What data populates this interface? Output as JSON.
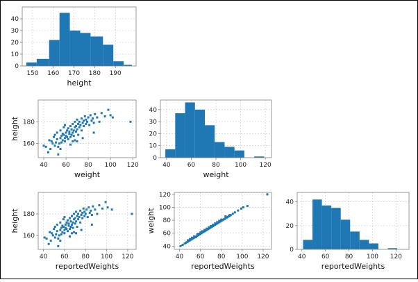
{
  "colors": {
    "marker": "#1f77b4",
    "grid": "#c8c8c8",
    "axes": "#808080",
    "frame": "#000000"
  },
  "chart_data": [
    {
      "type": "bar",
      "subtype": "histogram",
      "xlabel": "height",
      "ylabel": "",
      "xlim": [
        145,
        200
      ],
      "ylim": [
        0,
        50
      ],
      "xticks": [
        150,
        160,
        170,
        180,
        190
      ],
      "yticks": [
        0,
        10,
        20,
        30,
        40
      ],
      "grid": true,
      "bins": [
        {
          "start": 147,
          "end": 152,
          "count": 3
        },
        {
          "start": 152,
          "end": 158,
          "count": 6
        },
        {
          "start": 158,
          "end": 163,
          "count": 22
        },
        {
          "start": 163,
          "end": 168,
          "count": 45
        },
        {
          "start": 168,
          "end": 173,
          "count": 30
        },
        {
          "start": 173,
          "end": 178,
          "count": 28
        },
        {
          "start": 178,
          "end": 184,
          "count": 25
        },
        {
          "start": 184,
          "end": 189,
          "count": 18
        },
        {
          "start": 189,
          "end": 194,
          "count": 4
        },
        {
          "start": 194,
          "end": 198,
          "count": 1
        }
      ]
    },
    {
      "type": "scatter",
      "xlabel": "weight",
      "ylabel": "height",
      "xlim": [
        35,
        123
      ],
      "ylim": [
        147,
        200
      ],
      "xticks": [
        40,
        60,
        80,
        100,
        120
      ],
      "yticks": [
        160,
        180
      ],
      "grid": true,
      "points": [
        [
          40,
          158
        ],
        [
          42,
          157
        ],
        [
          44,
          152
        ],
        [
          45,
          163
        ],
        [
          46,
          155
        ],
        [
          47,
          162
        ],
        [
          48,
          160
        ],
        [
          49,
          166
        ],
        [
          50,
          158
        ],
        [
          50,
          168
        ],
        [
          51,
          161
        ],
        [
          52,
          164
        ],
        [
          52,
          170
        ],
        [
          53,
          157
        ],
        [
          54,
          160
        ],
        [
          55,
          172
        ],
        [
          55,
          165
        ],
        [
          56,
          167
        ],
        [
          56,
          161
        ],
        [
          57,
          163
        ],
        [
          57,
          169
        ],
        [
          58,
          168
        ],
        [
          58,
          175
        ],
        [
          59,
          165
        ],
        [
          59,
          162
        ],
        [
          60,
          170
        ],
        [
          60,
          167
        ],
        [
          61,
          166
        ],
        [
          61,
          172
        ],
        [
          62,
          174
        ],
        [
          62,
          164
        ],
        [
          63,
          169
        ],
        [
          63,
          171
        ],
        [
          64,
          176
        ],
        [
          64,
          166
        ],
        [
          65,
          173
        ],
        [
          65,
          168
        ],
        [
          66,
          170
        ],
        [
          66,
          178
        ],
        [
          67,
          172
        ],
        [
          67,
          167
        ],
        [
          68,
          175
        ],
        [
          68,
          180
        ],
        [
          69,
          171
        ],
        [
          69,
          176
        ],
        [
          70,
          173
        ],
        [
          70,
          182
        ],
        [
          71,
          178
        ],
        [
          72,
          175
        ],
        [
          72,
          180
        ],
        [
          73,
          177
        ],
        [
          74,
          172
        ],
        [
          74,
          183
        ],
        [
          75,
          179
        ],
        [
          76,
          181
        ],
        [
          76,
          176
        ],
        [
          77,
          185
        ],
        [
          78,
          178
        ],
        [
          78,
          182
        ],
        [
          79,
          180
        ],
        [
          80,
          184
        ],
        [
          81,
          177
        ],
        [
          82,
          186
        ],
        [
          83,
          181
        ],
        [
          84,
          183
        ],
        [
          85,
          179
        ],
        [
          86,
          187
        ],
        [
          88,
          184
        ],
        [
          90,
          180
        ],
        [
          92,
          188
        ],
        [
          95,
          185
        ],
        [
          98,
          191
        ],
        [
          100,
          186
        ],
        [
          102,
          184
        ],
        [
          118,
          180
        ],
        [
          64,
          159
        ],
        [
          66,
          162
        ],
        [
          68,
          163
        ],
        [
          71,
          168
        ],
        [
          59,
          177
        ],
        [
          85,
          170
        ],
        [
          75,
          165
        ],
        [
          70,
          162
        ],
        [
          55,
          155
        ],
        [
          53,
          150
        ]
      ]
    },
    {
      "type": "bar",
      "subtype": "histogram",
      "xlabel": "weight",
      "ylabel": "",
      "xlim": [
        35,
        125
      ],
      "ylim": [
        0,
        48
      ],
      "xticks": [
        40,
        60,
        80,
        100,
        120
      ],
      "yticks": [
        0,
        10,
        20,
        30,
        40
      ],
      "grid": true,
      "bins": [
        {
          "start": 39,
          "end": 47,
          "count": 7
        },
        {
          "start": 47,
          "end": 55,
          "count": 37
        },
        {
          "start": 55,
          "end": 63,
          "count": 46
        },
        {
          "start": 63,
          "end": 71,
          "count": 40
        },
        {
          "start": 71,
          "end": 79,
          "count": 27
        },
        {
          "start": 79,
          "end": 87,
          "count": 13
        },
        {
          "start": 87,
          "end": 95,
          "count": 9
        },
        {
          "start": 95,
          "end": 103,
          "count": 6
        },
        {
          "start": 103,
          "end": 111,
          "count": 0
        },
        {
          "start": 111,
          "end": 119,
          "count": 1
        }
      ]
    },
    {
      "type": "scatter",
      "xlabel": "reportedWeights",
      "ylabel": "height",
      "xlim": [
        35,
        128
      ],
      "ylim": [
        147,
        200
      ],
      "xticks": [
        40,
        60,
        80,
        100,
        120
      ],
      "yticks": [
        160,
        180
      ],
      "grid": true,
      "points": [
        [
          41,
          158
        ],
        [
          43,
          157
        ],
        [
          45,
          152
        ],
        [
          46,
          163
        ],
        [
          47,
          155
        ],
        [
          48,
          162
        ],
        [
          49,
          160
        ],
        [
          50,
          166
        ],
        [
          51,
          158
        ],
        [
          51,
          168
        ],
        [
          52,
          161
        ],
        [
          53,
          164
        ],
        [
          53,
          170
        ],
        [
          54,
          157
        ],
        [
          55,
          160
        ],
        [
          56,
          172
        ],
        [
          56,
          165
        ],
        [
          57,
          167
        ],
        [
          57,
          161
        ],
        [
          58,
          163
        ],
        [
          58,
          169
        ],
        [
          59,
          168
        ],
        [
          59,
          175
        ],
        [
          60,
          165
        ],
        [
          60,
          162
        ],
        [
          61,
          170
        ],
        [
          61,
          167
        ],
        [
          62,
          166
        ],
        [
          62,
          172
        ],
        [
          63,
          174
        ],
        [
          63,
          164
        ],
        [
          64,
          169
        ],
        [
          64,
          171
        ],
        [
          65,
          176
        ],
        [
          65,
          166
        ],
        [
          66,
          173
        ],
        [
          66,
          168
        ],
        [
          67,
          170
        ],
        [
          67,
          178
        ],
        [
          68,
          172
        ],
        [
          68,
          167
        ],
        [
          69,
          175
        ],
        [
          69,
          180
        ],
        [
          70,
          171
        ],
        [
          70,
          176
        ],
        [
          71,
          173
        ],
        [
          71,
          182
        ],
        [
          72,
          178
        ],
        [
          73,
          175
        ],
        [
          73,
          180
        ],
        [
          74,
          177
        ],
        [
          75,
          172
        ],
        [
          75,
          183
        ],
        [
          76,
          179
        ],
        [
          77,
          181
        ],
        [
          77,
          176
        ],
        [
          78,
          185
        ],
        [
          79,
          178
        ],
        [
          79,
          182
        ],
        [
          80,
          180
        ],
        [
          81,
          184
        ],
        [
          82,
          177
        ],
        [
          83,
          186
        ],
        [
          84,
          181
        ],
        [
          85,
          183
        ],
        [
          86,
          179
        ],
        [
          87,
          187
        ],
        [
          89,
          184
        ],
        [
          91,
          180
        ],
        [
          93,
          188
        ],
        [
          96,
          185
        ],
        [
          99,
          191
        ],
        [
          101,
          186
        ],
        [
          105,
          184
        ],
        [
          124,
          180
        ],
        [
          65,
          159
        ],
        [
          67,
          162
        ],
        [
          69,
          163
        ],
        [
          72,
          168
        ],
        [
          60,
          177
        ],
        [
          86,
          170
        ],
        [
          76,
          165
        ],
        [
          71,
          162
        ],
        [
          56,
          155
        ],
        [
          54,
          150
        ]
      ]
    },
    {
      "type": "scatter",
      "xlabel": "reportedWeights",
      "ylabel": "weight",
      "xlim": [
        35,
        128
      ],
      "ylim": [
        35,
        123
      ],
      "xticks": [
        40,
        60,
        80,
        100,
        120
      ],
      "yticks": [
        40,
        60,
        80,
        100,
        120
      ],
      "grid": true,
      "points": [
        [
          41,
          40
        ],
        [
          43,
          42
        ],
        [
          45,
          44
        ],
        [
          46,
          45
        ],
        [
          47,
          46
        ],
        [
          48,
          47
        ],
        [
          49,
          48
        ],
        [
          50,
          49
        ],
        [
          51,
          50
        ],
        [
          52,
          51
        ],
        [
          53,
          52
        ],
        [
          54,
          53
        ],
        [
          55,
          54
        ],
        [
          56,
          55
        ],
        [
          57,
          56
        ],
        [
          58,
          57
        ],
        [
          59,
          58
        ],
        [
          60,
          59
        ],
        [
          61,
          60
        ],
        [
          62,
          61
        ],
        [
          63,
          62
        ],
        [
          64,
          63
        ],
        [
          65,
          64
        ],
        [
          66,
          65
        ],
        [
          67,
          66
        ],
        [
          68,
          67
        ],
        [
          69,
          68
        ],
        [
          70,
          69
        ],
        [
          71,
          70
        ],
        [
          72,
          71
        ],
        [
          73,
          72
        ],
        [
          74,
          73
        ],
        [
          75,
          74
        ],
        [
          76,
          75
        ],
        [
          77,
          76
        ],
        [
          78,
          77
        ],
        [
          79,
          78
        ],
        [
          80,
          79
        ],
        [
          81,
          80
        ],
        [
          82,
          81
        ],
        [
          83,
          82
        ],
        [
          84,
          83
        ],
        [
          85,
          84
        ],
        [
          86,
          85
        ],
        [
          87,
          86
        ],
        [
          88,
          87
        ],
        [
          89,
          88
        ],
        [
          91,
          90
        ],
        [
          93,
          92
        ],
        [
          96,
          95
        ],
        [
          99,
          98
        ],
        [
          101,
          100
        ],
        [
          105,
          102
        ],
        [
          124,
          120
        ],
        [
          52,
          53
        ],
        [
          56,
          54
        ],
        [
          60,
          61
        ],
        [
          64,
          65
        ],
        [
          68,
          69
        ],
        [
          72,
          73
        ],
        [
          76,
          77
        ],
        [
          80,
          81
        ],
        [
          84,
          86
        ],
        [
          88,
          88
        ],
        [
          58,
          59
        ],
        [
          62,
          63
        ],
        [
          66,
          67
        ],
        [
          70,
          71
        ],
        [
          74,
          75
        ],
        [
          78,
          79
        ],
        [
          54,
          55
        ],
        [
          50,
          51
        ],
        [
          48,
          49
        ],
        [
          57,
          58
        ],
        [
          61,
          62
        ]
      ]
    },
    {
      "type": "bar",
      "subtype": "histogram",
      "xlabel": "reportedWeights",
      "ylabel": "",
      "xlim": [
        36,
        131
      ],
      "ylim": [
        0,
        48
      ],
      "xticks": [
        40,
        60,
        80,
        100,
        120
      ],
      "yticks": [
        0,
        20,
        40
      ],
      "grid": true,
      "bins": [
        {
          "start": 41,
          "end": 49,
          "count": 8
        },
        {
          "start": 49,
          "end": 57,
          "count": 42
        },
        {
          "start": 57,
          "end": 65,
          "count": 37
        },
        {
          "start": 65,
          "end": 73,
          "count": 35
        },
        {
          "start": 73,
          "end": 81,
          "count": 25
        },
        {
          "start": 81,
          "end": 89,
          "count": 15
        },
        {
          "start": 89,
          "end": 97,
          "count": 8
        },
        {
          "start": 97,
          "end": 105,
          "count": 5
        },
        {
          "start": 105,
          "end": 113,
          "count": 0
        },
        {
          "start": 113,
          "end": 121,
          "count": 1
        }
      ]
    }
  ]
}
